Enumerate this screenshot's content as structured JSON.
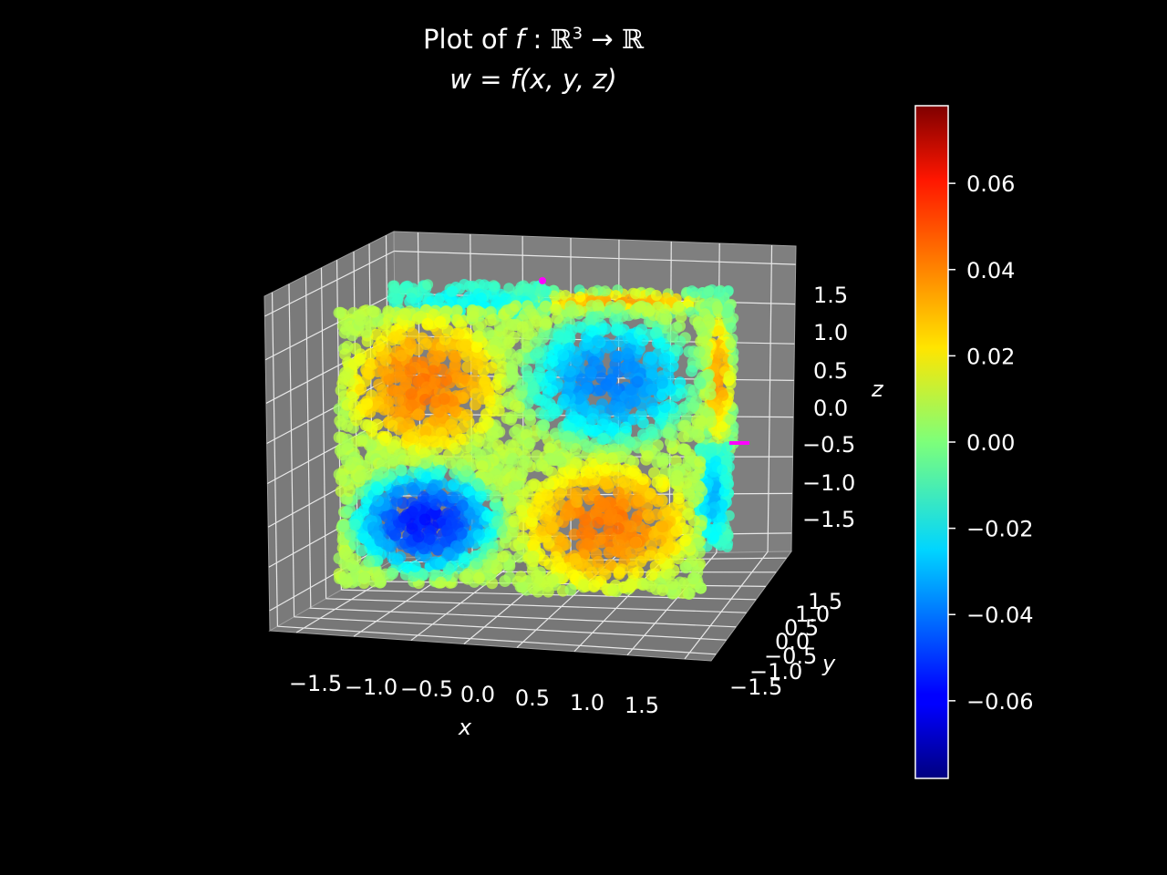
{
  "title_line1": {
    "prefix": "Plot of ",
    "func": "f",
    "colon": " : ",
    "domain": "ℝ",
    "exp": "3",
    "arrow": " → ",
    "codomain": "ℝ"
  },
  "title_line2": "w = f(x, y, z)",
  "axes": {
    "x": {
      "label": "x",
      "ticks": [
        "−1.5",
        "−1.0",
        "−0.5",
        "0.0",
        "0.5",
        "1.0",
        "1.5"
      ],
      "range": [
        -2,
        2
      ]
    },
    "y": {
      "label": "y",
      "ticks": [
        "−1.5",
        "−1.0",
        "−0.5",
        "0.0",
        "0.5",
        "1.0",
        "1.5"
      ],
      "range": [
        -2,
        2
      ]
    },
    "z": {
      "label": "z",
      "ticks": [
        "−1.5",
        "−1.0",
        "−0.5",
        "0.0",
        "0.5",
        "1.0",
        "1.5"
      ],
      "range": [
        -2,
        2
      ]
    }
  },
  "colorbar": {
    "colormap": "jet",
    "ticks": [
      "0.06",
      "0.04",
      "0.02",
      "0.00",
      "−0.02",
      "−0.04",
      "−0.06"
    ],
    "tick_values": [
      0.06,
      0.04,
      0.02,
      0.0,
      -0.02,
      -0.04,
      -0.06
    ],
    "range": [
      -0.078,
      0.078
    ]
  },
  "chart_data": {
    "type": "scatter",
    "projection": "3d",
    "title": "Plot of f : ℝ³ → ℝ  w = f(x, y, z)",
    "xlabel": "x",
    "ylabel": "y",
    "zlabel": "z",
    "xlim": [
      -2,
      2
    ],
    "ylim": [
      -2,
      2
    ],
    "zlim": [
      -2,
      2
    ],
    "grid": true,
    "background": "#000000",
    "pane_color": "#808080",
    "color_by": "w",
    "colormap": "jet",
    "clim": [
      -0.078,
      0.078
    ],
    "blocks": [
      {
        "x_range": [
          -1.8,
          0
        ],
        "z_range": [
          0,
          1.8
        ],
        "front_face_center_w": 0.04
      },
      {
        "x_range": [
          0,
          1.8
        ],
        "z_range": [
          0,
          1.8
        ],
        "front_face_center_w": -0.04
      },
      {
        "x_range": [
          -1.8,
          0
        ],
        "z_range": [
          -1.8,
          0
        ],
        "front_face_center_w": -0.055
      },
      {
        "x_range": [
          0,
          1.8
        ],
        "z_range": [
          -1.8,
          0
        ],
        "front_face_center_w": 0.04
      }
    ],
    "markers": [
      {
        "color": "#ff00ff",
        "position": "top-center"
      },
      {
        "color": "#ff00ff",
        "position": "right-edge"
      }
    ]
  }
}
